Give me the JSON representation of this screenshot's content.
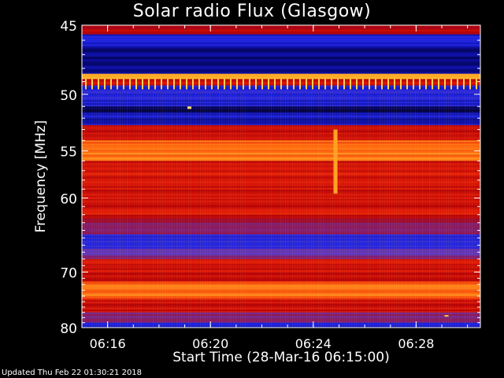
{
  "chart_data": {
    "type": "heatmap",
    "title": "Solar radio Flux (Glasgow)",
    "xlabel": "Start Time (28-Mar-16 06:15:00)",
    "ylabel": "Frequency [MHz]",
    "x_unit": "minutes",
    "xlim": [
      "06:15:00",
      "06:30:30"
    ],
    "ylim": [
      45,
      80
    ],
    "y_scale": "reciprocal",
    "xticks": [
      "06:16",
      "06:20",
      "06:24",
      "06:28"
    ],
    "yticks": [
      45,
      50,
      55,
      60,
      70,
      80
    ],
    "colormap": [
      "#00002a",
      "#0a0a8c",
      "#1a22e0",
      "#5a3cc8",
      "#8a1a60",
      "#b00008",
      "#e41e08",
      "#ff6a10",
      "#ffc030",
      "#ffffa0"
    ],
    "frequency_bands": [
      {
        "from": 45.0,
        "to": 45.6,
        "level": 0.55
      },
      {
        "from": 45.6,
        "to": 46.5,
        "level": 0.2
      },
      {
        "from": 46.5,
        "to": 48.4,
        "level": 0.1
      },
      {
        "from": 48.4,
        "to": 48.8,
        "level": 0.9
      },
      {
        "from": 48.8,
        "to": 49.3,
        "level": 0.6
      },
      {
        "from": 49.3,
        "to": 51.0,
        "level": 0.22
      },
      {
        "from": 51.0,
        "to": 51.5,
        "level": 0.05
      },
      {
        "from": 51.5,
        "to": 52.6,
        "level": 0.18
      },
      {
        "from": 52.6,
        "to": 53.0,
        "level": 0.65
      },
      {
        "from": 53.0,
        "to": 54.0,
        "level": 0.6
      },
      {
        "from": 54.0,
        "to": 56.0,
        "level": 0.78
      },
      {
        "from": 56.0,
        "to": 62.0,
        "level": 0.62
      },
      {
        "from": 62.0,
        "to": 63.0,
        "level": 0.55
      },
      {
        "from": 63.0,
        "to": 64.5,
        "level": 0.42
      },
      {
        "from": 64.5,
        "to": 66.5,
        "level": 0.25
      },
      {
        "from": 66.5,
        "to": 68.0,
        "level": 0.38
      },
      {
        "from": 68.0,
        "to": 71.5,
        "level": 0.62
      },
      {
        "from": 71.5,
        "to": 74.5,
        "level": 0.78
      },
      {
        "from": 74.5,
        "to": 77.0,
        "level": 0.6
      },
      {
        "from": 77.0,
        "to": 79.0,
        "level": 0.42
      },
      {
        "from": 79.0,
        "to": 80.0,
        "level": 0.2
      }
    ],
    "events": [
      {
        "time": "06:24:51",
        "from": 53.0,
        "to": 59.5,
        "level": 0.85,
        "note": "short vertical feature"
      },
      {
        "time": "06:19:10",
        "from": 51.0,
        "to": 51.2,
        "level": 0.95
      },
      {
        "time": "06:29:10",
        "from": 77.5,
        "to": 77.7,
        "level": 0.9
      }
    ]
  },
  "footer": "Updated Thu Feb 22 01:30:21 2018"
}
